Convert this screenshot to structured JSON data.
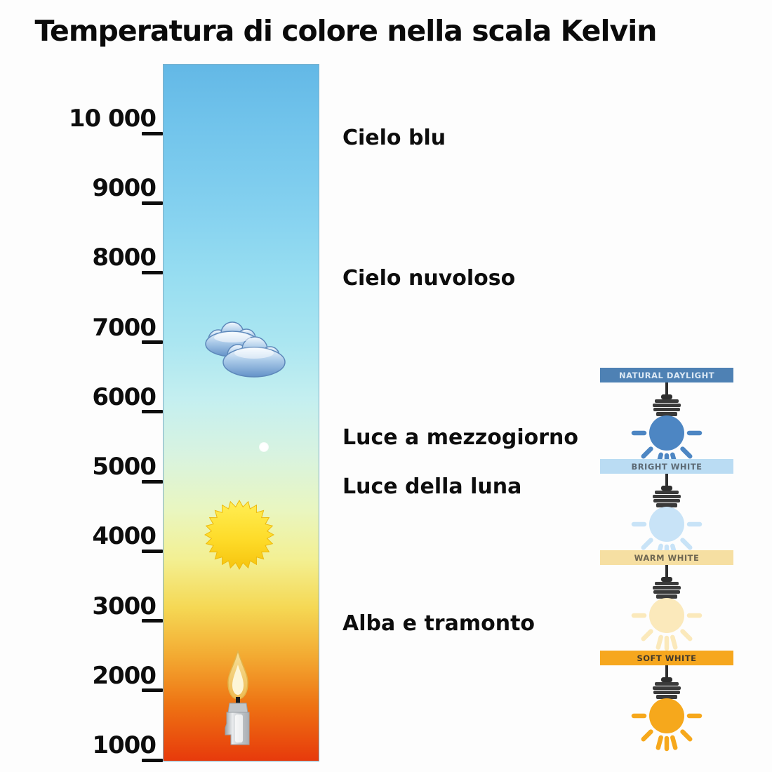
{
  "title": "Temperatura di colore nella scala Kelvin",
  "chart_data": {
    "type": "diagram",
    "subject": "color-temperature-kelvin-scale",
    "axis": {
      "unit": "Kelvin",
      "min": 1000,
      "max": 10000,
      "tick_values": [
        10000,
        9000,
        8000,
        7000,
        6000,
        5000,
        4000,
        3000,
        2000,
        1000
      ],
      "tick_labels": [
        "10 000",
        "9000",
        "8000",
        "7000",
        "6000",
        "5000",
        "4000",
        "3000",
        "2000",
        "1000"
      ]
    },
    "gradient_stops": [
      {
        "pos": 0,
        "color": "#63b8e6"
      },
      {
        "pos": 8,
        "color": "#70c3eb"
      },
      {
        "pos": 20,
        "color": "#83d0ef"
      },
      {
        "pos": 30,
        "color": "#96ddf1"
      },
      {
        "pos": 40,
        "color": "#abe6f1"
      },
      {
        "pos": 48,
        "color": "#c4eff0"
      },
      {
        "pos": 56,
        "color": "#d8f3e0"
      },
      {
        "pos": 64,
        "color": "#e9f6c0"
      },
      {
        "pos": 71,
        "color": "#f3f093"
      },
      {
        "pos": 78,
        "color": "#f5d854"
      },
      {
        "pos": 85,
        "color": "#f3aa32"
      },
      {
        "pos": 92,
        "color": "#ee7313"
      },
      {
        "pos": 100,
        "color": "#e73a0b"
      }
    ],
    "annotations": [
      {
        "label": "Cielo blu",
        "kelvin": 9930
      },
      {
        "label": "Cielo nuvoloso",
        "kelvin": 7915
      },
      {
        "label": "Luce a mezzogiorno",
        "kelvin": 5626
      },
      {
        "label": "Luce della luna",
        "kelvin": 4920
      },
      {
        "label": "Alba e tramonto",
        "kelvin": 2955
      }
    ],
    "icons": [
      {
        "name": "clouds",
        "kelvin": 6900
      },
      {
        "name": "moon-dot",
        "kelvin": 5500
      },
      {
        "name": "sun",
        "kelvin": 4235
      },
      {
        "name": "candle",
        "kelvin": 1880
      }
    ],
    "legend": {
      "items": [
        {
          "label": "NATURAL DAYLIGHT",
          "banner_color": "#4e81b4",
          "text_color": "#dbe8f4",
          "bulb_color": "#4d86c3"
        },
        {
          "label": "BRIGHT WHITE",
          "banner_color": "#badcf3",
          "text_color": "#5d6a74",
          "bulb_color": "#c8e3f7"
        },
        {
          "label": "WARM WHITE",
          "banner_color": "#f6dfa2",
          "text_color": "#6f6752",
          "bulb_color": "#fbe9bb"
        },
        {
          "label": "SOFT WHITE",
          "banner_color": "#f6a71e",
          "text_color": "#42392b",
          "bulb_color": "#f6a81c"
        }
      ]
    }
  }
}
